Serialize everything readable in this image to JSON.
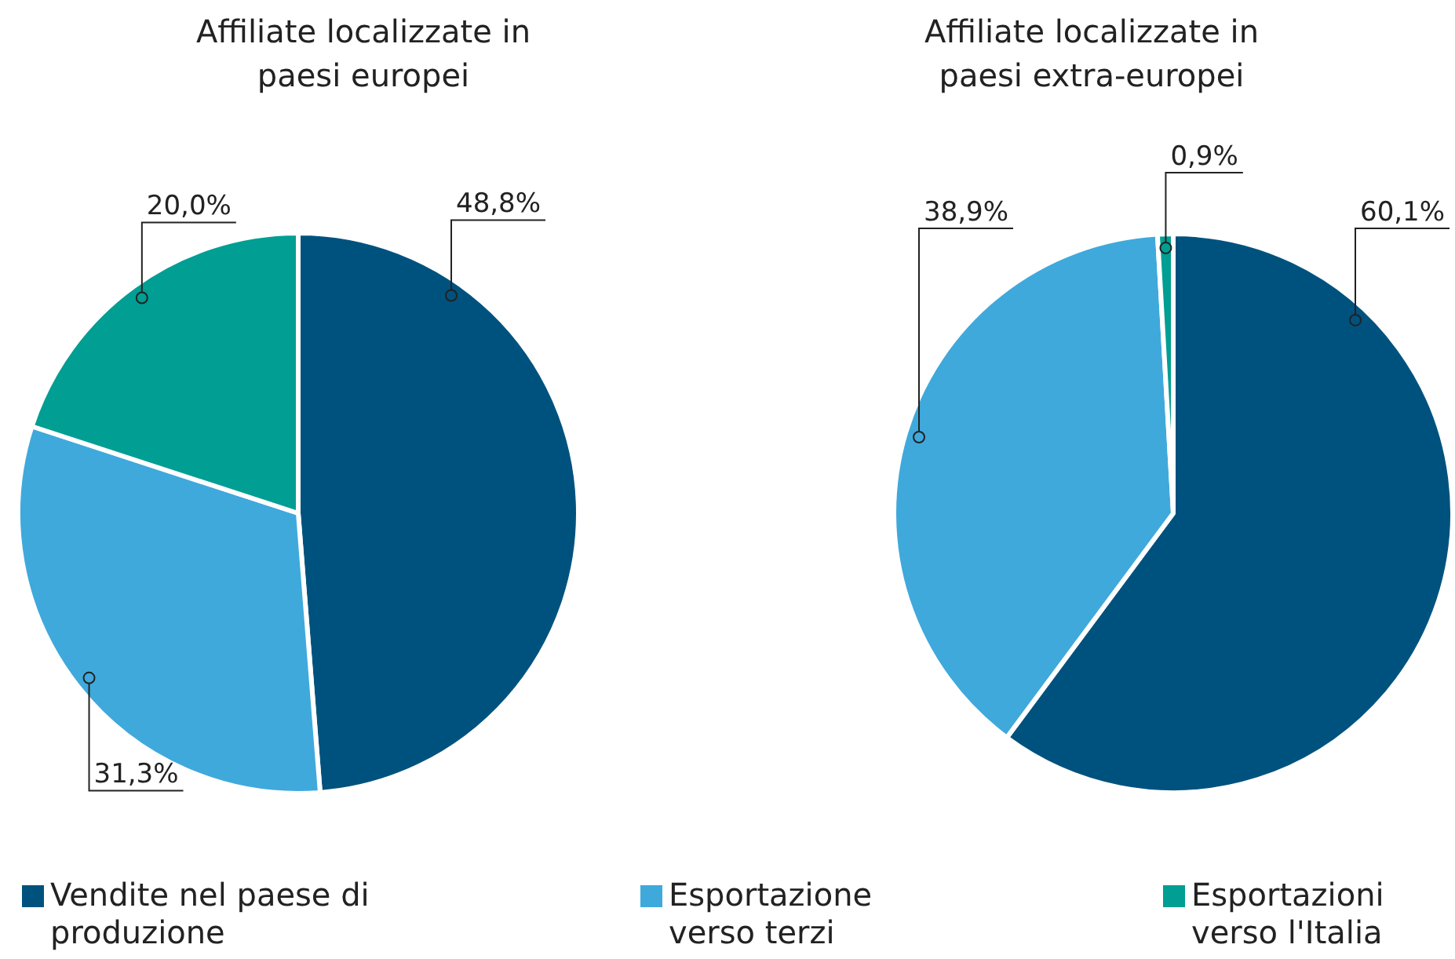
{
  "chart_data": [
    {
      "type": "pie",
      "title": "Affiliate localizzate in paesi europei",
      "categories": [
        "Vendite nel paese di produzione",
        "Esportazione verso terzi",
        "Esportazioni verso l'Italia"
      ],
      "values": [
        48.8,
        31.3,
        20.0
      ],
      "value_labels": [
        "48,8%",
        "31,3%",
        "20,0%"
      ],
      "colors": [
        "#00527e",
        "#3fa9dc",
        "#009e93"
      ],
      "legend": "bottom"
    },
    {
      "type": "pie",
      "title": "Affiliate localizzate in paesi extra-europei",
      "categories": [
        null,
        null,
        null
      ],
      "values": [
        60.1,
        38.9,
        0.9
      ],
      "value_labels": [
        "60,1%",
        "38,9%",
        "0,9%"
      ],
      "colors": [
        "#00527e",
        "#3fa9dc",
        "#009e93"
      ]
    }
  ]
}
